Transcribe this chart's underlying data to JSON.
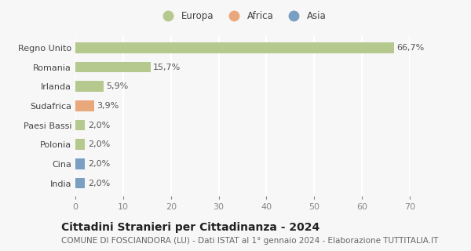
{
  "categories": [
    "Regno Unito",
    "Romania",
    "Irlanda",
    "Sudafrica",
    "Paesi Bassi",
    "Polonia",
    "Cina",
    "India"
  ],
  "values": [
    66.7,
    15.7,
    5.9,
    3.9,
    2.0,
    2.0,
    2.0,
    2.0
  ],
  "labels": [
    "66,7%",
    "15,7%",
    "5,9%",
    "3,9%",
    "2,0%",
    "2,0%",
    "2,0%",
    "2,0%"
  ],
  "colors": [
    "#b5c98e",
    "#b5c98e",
    "#b5c98e",
    "#e8a87c",
    "#b5c98e",
    "#b5c98e",
    "#7a9fc2",
    "#7a9fc2"
  ],
  "legend_labels": [
    "Europa",
    "Africa",
    "Asia"
  ],
  "legend_colors": [
    "#b5c98e",
    "#e8a87c",
    "#7a9fc2"
  ],
  "title": "Cittadini Stranieri per Cittadinanza - 2024",
  "subtitle": "COMUNE DI FOSCIANDORA (LU) - Dati ISTAT al 1° gennaio 2024 - Elaborazione TUTTITALIA.IT",
  "xlim": [
    0,
    70
  ],
  "xticks": [
    0,
    10,
    20,
    30,
    40,
    50,
    60,
    70
  ],
  "background_color": "#f7f7f7",
  "grid_color": "#ffffff",
  "bar_height": 0.55,
  "title_fontsize": 10,
  "subtitle_fontsize": 7.5,
  "tick_fontsize": 8,
  "label_fontsize": 8,
  "legend_fontsize": 8.5
}
